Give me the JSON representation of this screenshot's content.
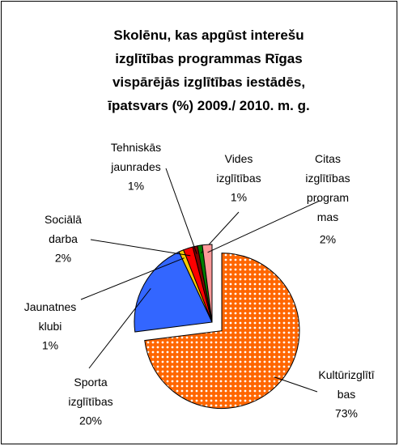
{
  "chart_data": {
    "type": "pie",
    "title": "Skolēnu, kas apgūst interešu\nizglītības programmas Rīgas\nvispārējās izglītības iestādēs,\nīpatsvars (%)  2009./ 2010. m. g.",
    "categories": [
      "Kultūrizglītī\nbas",
      "Sporta\nizglītības",
      "Jaunatnes\nklubi",
      "Sociālā\ndarba",
      "Tehniskās\njaunrades",
      "Vides\nizglītības",
      "Citas\nizglītības\nprogram\nmas"
    ],
    "values": [
      73,
      20,
      1,
      2,
      1,
      1,
      2
    ],
    "value_labels": [
      "73%",
      "20%",
      "1%",
      "2%",
      "1%",
      "1%",
      "2%"
    ],
    "colors": [
      "#ff6600",
      "#3366ff",
      "#ffcc00",
      "#ff0000",
      "#800000",
      "#008000",
      "#ff9999"
    ]
  }
}
